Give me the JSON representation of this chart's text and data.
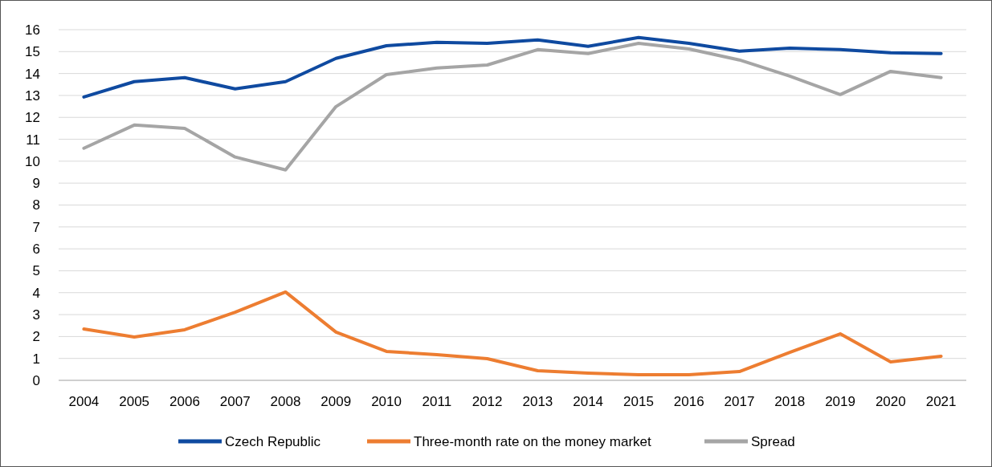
{
  "chart_data": {
    "type": "line",
    "categories": [
      "2004",
      "2005",
      "2006",
      "2007",
      "2008",
      "2009",
      "2010",
      "2011",
      "2012",
      "2013",
      "2014",
      "2015",
      "2016",
      "2017",
      "2018",
      "2019",
      "2020",
      "2021"
    ],
    "series": [
      {
        "name": "Czech Republic",
        "color": "#0f4aa0",
        "values": [
          12.93,
          13.63,
          13.81,
          13.3,
          13.63,
          14.69,
          15.27,
          15.42,
          15.38,
          15.53,
          15.24,
          15.64,
          15.38,
          15.02,
          15.16,
          15.09,
          14.95,
          14.91
        ]
      },
      {
        "name": "Three-month rate on the money market",
        "color": "#ed7d31",
        "values": [
          2.34,
          1.98,
          2.31,
          3.11,
          4.03,
          2.2,
          1.32,
          1.17,
          0.99,
          0.44,
          0.33,
          0.26,
          0.26,
          0.4,
          1.28,
          2.12,
          0.84,
          1.1
        ]
      },
      {
        "name": "Spread",
        "color": "#a5a5a5",
        "values": [
          10.59,
          11.65,
          11.5,
          10.19,
          9.6,
          12.49,
          13.95,
          14.25,
          14.39,
          15.09,
          14.91,
          15.38,
          15.12,
          14.62,
          13.88,
          13.04,
          14.1,
          13.81
        ]
      }
    ],
    "ylim": [
      0,
      16
    ],
    "yticks": [
      0,
      1,
      2,
      3,
      4,
      5,
      6,
      7,
      8,
      9,
      10,
      11,
      12,
      13,
      14,
      15,
      16
    ],
    "grid": "y",
    "legend": "bottom",
    "marker": "none",
    "line_style": "solid"
  }
}
